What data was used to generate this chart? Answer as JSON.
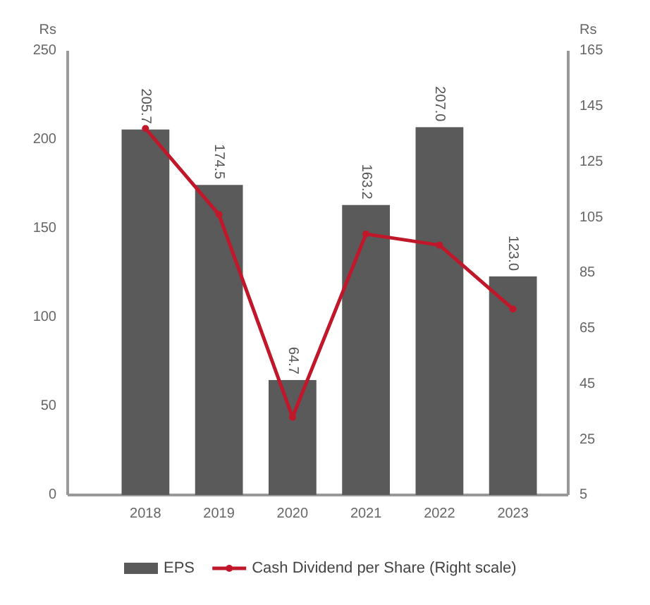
{
  "chart_data": {
    "type": "bar",
    "categories": [
      "2018",
      "2019",
      "2020",
      "2021",
      "2022",
      "2023"
    ],
    "ylabel": "Rs",
    "y2label": "Rs",
    "ylim": [
      0,
      250
    ],
    "yticks": [
      0,
      50,
      100,
      150,
      200,
      250
    ],
    "y2lim": [
      5,
      165
    ],
    "y2ticks": [
      5,
      25,
      45,
      65,
      85,
      105,
      125,
      145,
      165
    ],
    "series": [
      {
        "name": "EPS",
        "color": "#5a5a5a",
        "values": [
          205.7,
          174.5,
          64.7,
          163.2,
          207.0,
          123.0
        ],
        "value_labels": [
          "205.7",
          "174.5",
          "64.7",
          "163.2",
          "207.0",
          "123.0"
        ]
      },
      {
        "name": "Cash Dividend per Share (Right scale)",
        "type": "line",
        "axis": "y2",
        "color": "#c0182a",
        "values": [
          137,
          106,
          33,
          99,
          95,
          72
        ],
        "marker": "circle",
        "line_style": "solid"
      }
    ],
    "legend": "bottom",
    "grid": false
  }
}
